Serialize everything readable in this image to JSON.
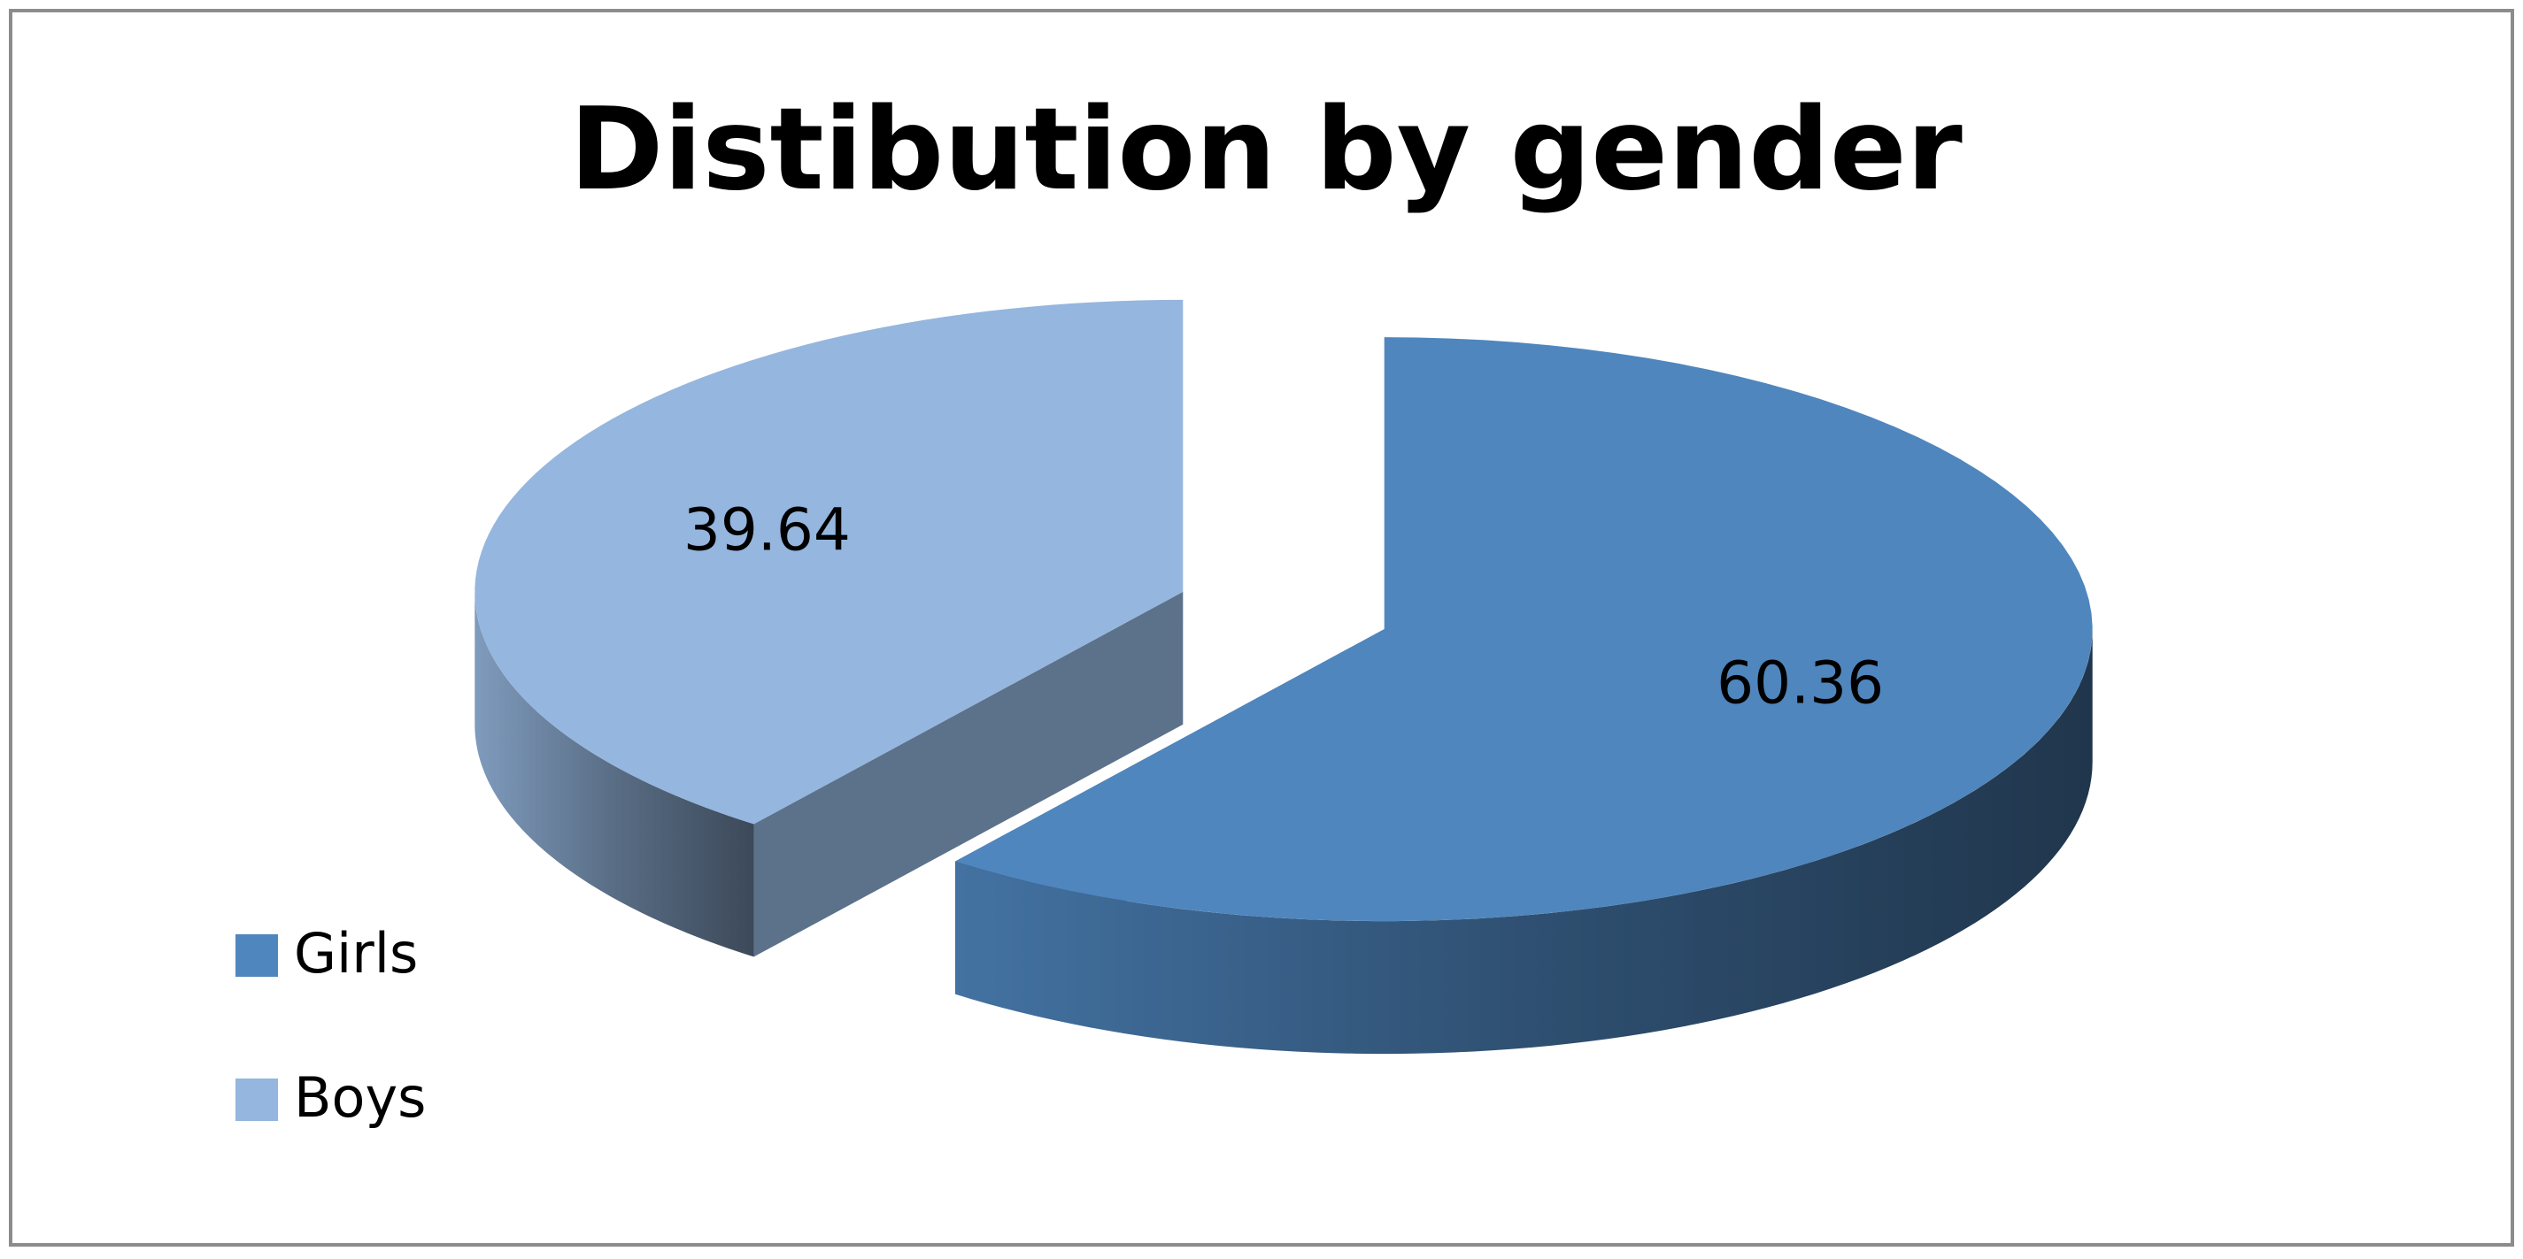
{
  "chart_data": {
    "type": "pie",
    "title": "Distibution by gender",
    "categories": [
      "Girls",
      "Boys"
    ],
    "values": [
      60.36,
      39.64
    ],
    "colors": [
      "#4f86be",
      "#95b6de"
    ],
    "legend": "left",
    "three_d": true,
    "exploded": true
  }
}
